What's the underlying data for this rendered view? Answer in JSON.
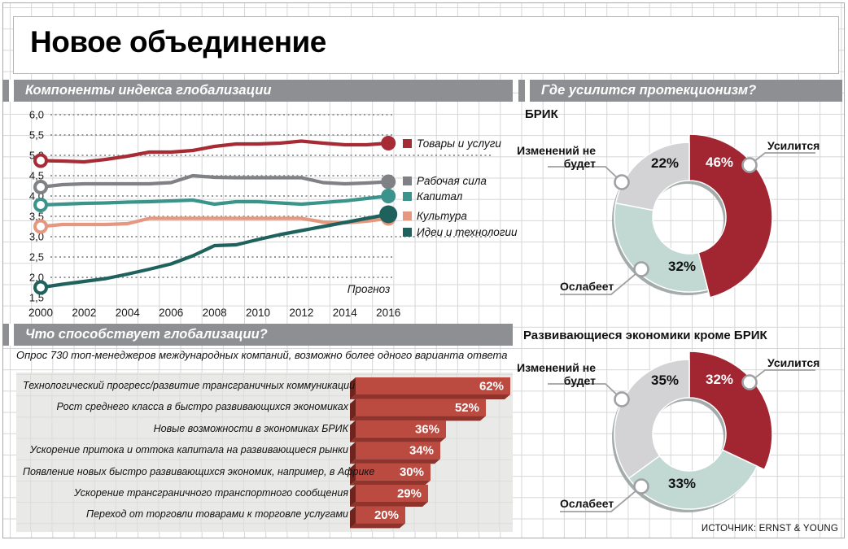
{
  "title": "Новое объединение",
  "source": "ИСТОЧНИК: ERNST & YOUNG",
  "sections": {
    "components": {
      "header": "Компоненты индекса глобализации"
    },
    "drivers": {
      "header": "Что способствует глобализации?",
      "subtitle": "Опрос 730 топ-менеджеров международных компаний, возможно более одного варианта ответа"
    },
    "protectionism": {
      "header": "Где усилится протекционизм?"
    }
  },
  "palette": {
    "header_bar_gray": "#8e8f92",
    "bar_red": "#bb4a40",
    "bar_red_dark": "#6f241e",
    "donut_red": "#a22532",
    "donut_teal": "#c2d8d2",
    "donut_gray": "#d3d3d5"
  },
  "chart_data": [
    {
      "id": "globalization-index-components",
      "type": "line",
      "title": "Компоненты индекса глобализации",
      "x": [
        2000,
        2001,
        2002,
        2003,
        2004,
        2005,
        2006,
        2007,
        2008,
        2009,
        2010,
        2011,
        2012,
        2013,
        2014,
        2015,
        2016
      ],
      "x_ticks": [
        2000,
        2002,
        2004,
        2006,
        2008,
        2010,
        2012,
        2014,
        2016
      ],
      "y_ticks": [
        6.0,
        5.5,
        5.0,
        4.5,
        4.0,
        3.5,
        3.0,
        2.5,
        2.0,
        1.5
      ],
      "y_tick_labels": [
        "6,0",
        "5,5",
        "5,0",
        "4,5",
        "4,0",
        "3,5",
        "3,0",
        "2,5",
        "2,0",
        "1,5"
      ],
      "ylim": [
        1.5,
        6.0
      ],
      "grid": "dotted horizontal",
      "legend_position": "right",
      "annotation": "Прогноз",
      "series": [
        {
          "name": "Товары и услуги",
          "color": "#a62b35",
          "values": [
            4.87,
            4.86,
            4.84,
            4.9,
            4.98,
            5.08,
            5.08,
            5.12,
            5.22,
            5.28,
            5.28,
            5.3,
            5.35,
            5.3,
            5.26,
            5.26,
            5.3
          ]
        },
        {
          "name": "Рабочая сила",
          "color": "#7f8184",
          "values": [
            4.22,
            4.28,
            4.3,
            4.3,
            4.3,
            4.3,
            4.33,
            4.5,
            4.46,
            4.45,
            4.45,
            4.45,
            4.45,
            4.33,
            4.3,
            4.32,
            4.35
          ]
        },
        {
          "name": "Капитал",
          "color": "#3a948c",
          "values": [
            3.78,
            3.8,
            3.82,
            3.83,
            3.85,
            3.86,
            3.88,
            3.9,
            3.8,
            3.86,
            3.86,
            3.83,
            3.8,
            3.84,
            3.88,
            3.94,
            4.0
          ]
        },
        {
          "name": "Культура",
          "color": "#e5977f",
          "values": [
            3.25,
            3.3,
            3.3,
            3.3,
            3.32,
            3.45,
            3.45,
            3.45,
            3.45,
            3.45,
            3.45,
            3.45,
            3.45,
            3.36,
            3.34,
            3.38,
            3.45
          ]
        },
        {
          "name": "Идеи и технологии",
          "color": "#1f625d",
          "values": [
            1.75,
            1.83,
            1.9,
            1.97,
            2.08,
            2.2,
            2.33,
            2.53,
            2.78,
            2.8,
            2.93,
            3.05,
            3.15,
            3.25,
            3.35,
            3.45,
            3.55
          ]
        }
      ]
    },
    {
      "id": "globalization-drivers",
      "type": "bar",
      "title": "Что способствует глобализации?",
      "subtitle": "Опрос 730 топ-менеджеров международных компаний, возможно более одного варианта ответа",
      "orientation": "horizontal",
      "unit": "%",
      "bar_color": "#bb4a40",
      "categories": [
        "Технологический прогресс/развитие трансграничных коммуникаций",
        "Рост среднего класса в быстро развивающихся экономиках",
        "Новые возможности в экономиках БРИК",
        "Ускорение притока и оттока капитала на развивающиеся рынки",
        "Появление новых быстро развивающихся экономик, например, в Африке",
        "Ускорение трансграничного транспортного сообщения",
        "Переход от торговли товарами к торговле услугами"
      ],
      "values": [
        62,
        52,
        36,
        34,
        30,
        29,
        20
      ]
    },
    {
      "id": "protectionism-bric",
      "type": "pie",
      "title": "БРИК",
      "slices": [
        {
          "label": "Усилится",
          "value": 46,
          "pct_text": "46%",
          "color": "#a22532"
        },
        {
          "label": "Ослабеет",
          "value": 32,
          "pct_text": "32%",
          "color": "#c2d8d2"
        },
        {
          "label": "Изменений не будет",
          "value": 22,
          "pct_text": "22%",
          "color": "#d3d3d5"
        }
      ]
    },
    {
      "id": "protectionism-non-bric",
      "type": "pie",
      "title": "Развивающиеся экономики кроме БРИК",
      "slices": [
        {
          "label": "Усилится",
          "value": 32,
          "pct_text": "32%",
          "color": "#a22532"
        },
        {
          "label": "Ослабеет",
          "value": 33,
          "pct_text": "33%",
          "color": "#c2d8d2"
        },
        {
          "label": "Изменений не будет",
          "value": 35,
          "pct_text": "35%",
          "color": "#d3d3d5"
        }
      ]
    }
  ]
}
